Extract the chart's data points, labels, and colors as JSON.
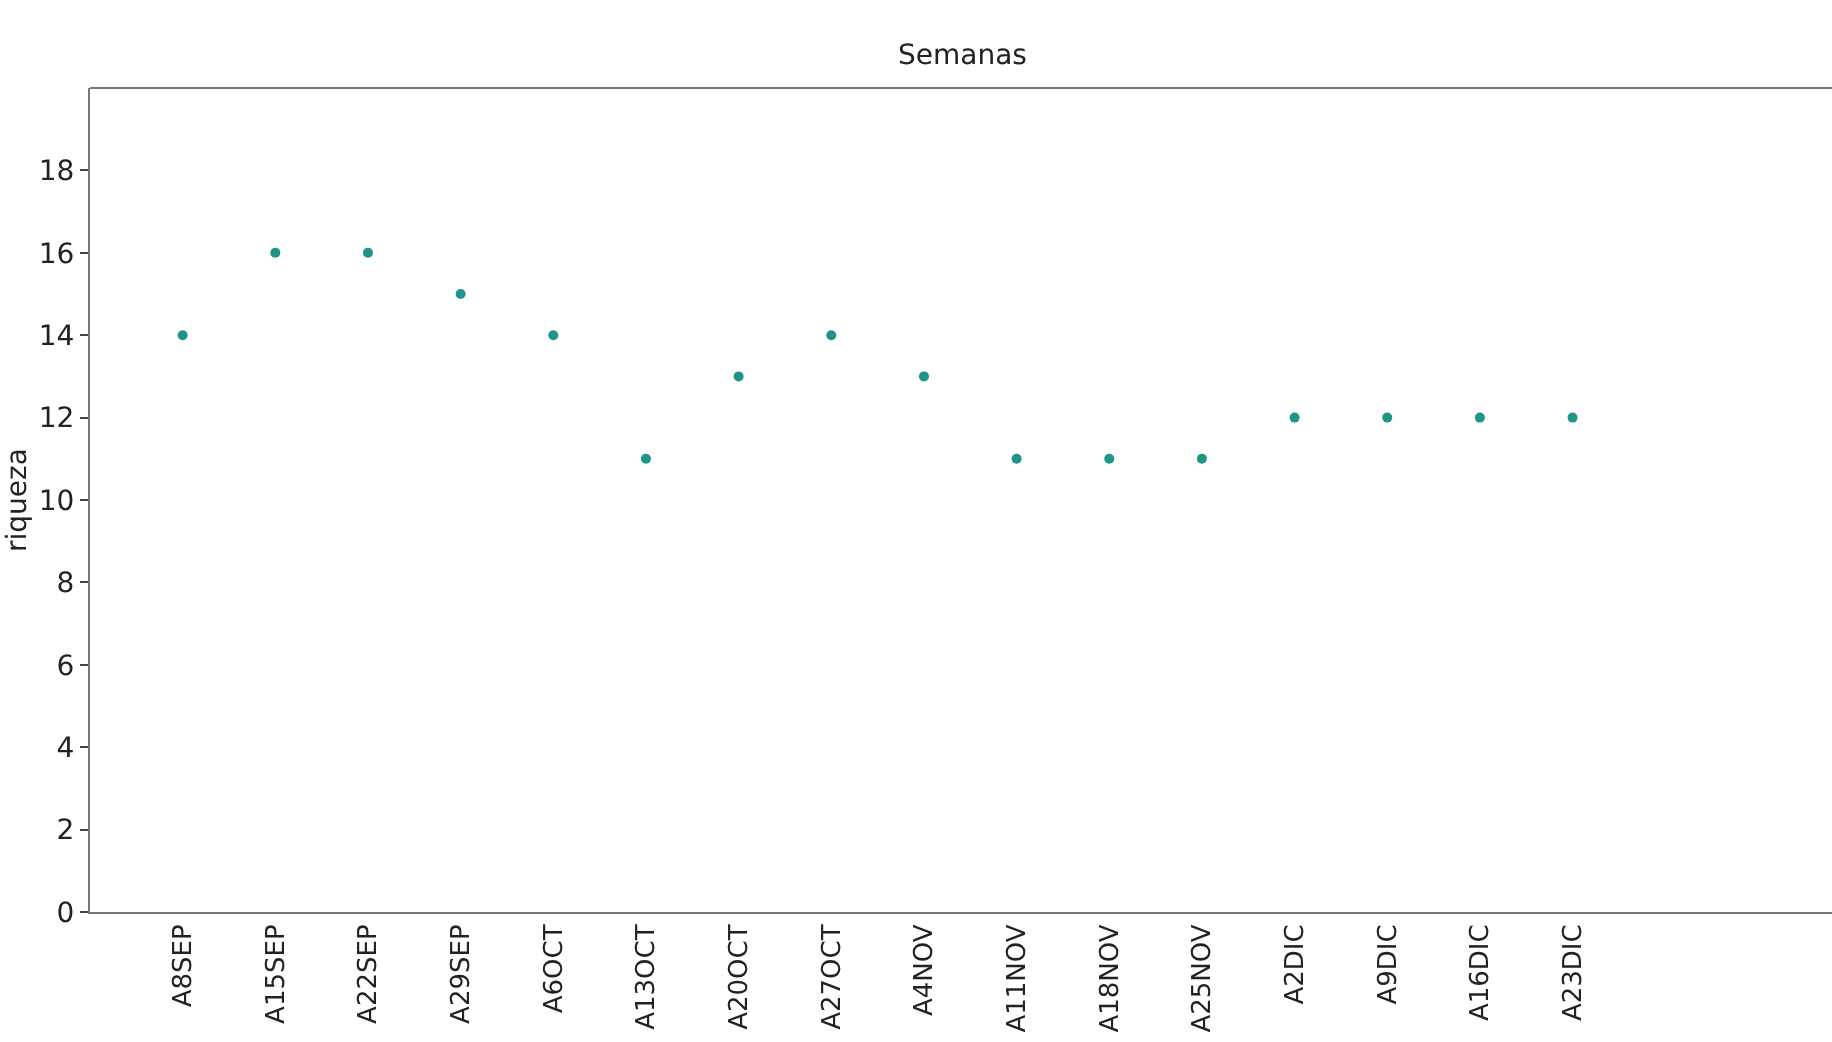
{
  "chart_data": {
    "type": "scatter",
    "xlabel": "Semanas",
    "ylabel": "riqueza",
    "categories": [
      "A8SEP",
      "A15SEP",
      "A22SEP",
      "A29SEP",
      "A6OCT",
      "A13OCT",
      "A20OCT",
      "A27OCT",
      "A4NOV",
      "A11NOV",
      "A18NOV",
      "A25NOV",
      "A2DIC",
      "A9DIC",
      "A16DIC",
      "A23DIC"
    ],
    "values": [
      14,
      16,
      16,
      15,
      14,
      11,
      13,
      14,
      13,
      11,
      11,
      11,
      12,
      12,
      12,
      12
    ],
    "color": "#1f9488",
    "marker": "circle",
    "ylim": [
      0,
      20
    ],
    "yticks": [
      0,
      2,
      4,
      6,
      8,
      10,
      12,
      14,
      16,
      18
    ]
  }
}
